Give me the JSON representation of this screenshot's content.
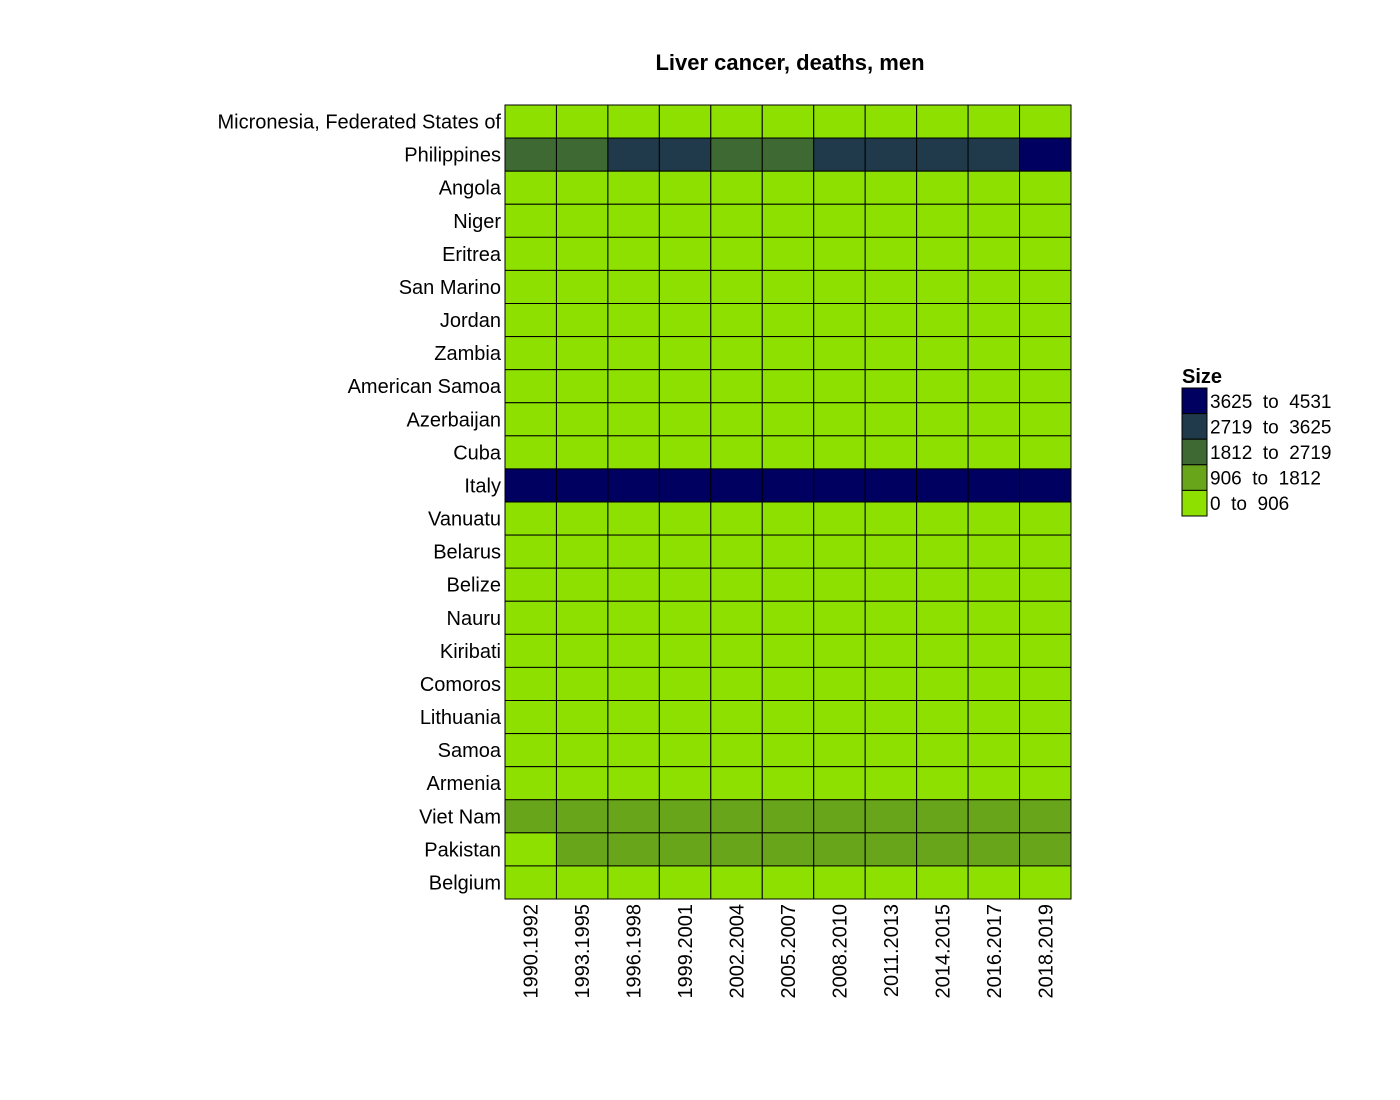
{
  "chart_data": {
    "type": "heatmap",
    "title": "Liver cancer, deaths, men",
    "rows": [
      "Micronesia, Federated States of",
      "Philippines",
      "Angola",
      "Niger",
      "Eritrea",
      "San Marino",
      "Jordan",
      "Zambia",
      "American Samoa",
      "Azerbaijan",
      "Cuba",
      "Italy",
      "Vanuatu",
      "Belarus",
      "Belize",
      "Nauru",
      "Kiribati",
      "Comoros",
      "Lithuania",
      "Samoa",
      "Armenia",
      "Viet Nam",
      "Pakistan",
      "Belgium"
    ],
    "columns": [
      "1990.1992",
      "1993.1995",
      "1996.1998",
      "1999.2001",
      "2002.2004",
      "2005.2007",
      "2008.2010",
      "2011.2013",
      "2014.2015",
      "2016.2017",
      "2018.2019"
    ],
    "bins": [
      {
        "label": "3625  to  4531",
        "min": 3625,
        "max": 4531,
        "color": "#000060"
      },
      {
        "label": "2719  to  3625",
        "min": 2719,
        "max": 3625,
        "color": "#203a4c"
      },
      {
        "label": "1812  to  2719",
        "min": 1812,
        "max": 2719,
        "color": "#3f6932"
      },
      {
        "label": "906  to  1812",
        "min": 906,
        "max": 1812,
        "color": "#68a51a"
      },
      {
        "label": "0  to  906",
        "min": 0,
        "max": 906,
        "color": "#8ee000"
      }
    ],
    "bin_index": [
      [
        4,
        4,
        4,
        4,
        4,
        4,
        4,
        4,
        4,
        4,
        4
      ],
      [
        2,
        2,
        1,
        1,
        2,
        2,
        1,
        1,
        1,
        1,
        0
      ],
      [
        4,
        4,
        4,
        4,
        4,
        4,
        4,
        4,
        4,
        4,
        4
      ],
      [
        4,
        4,
        4,
        4,
        4,
        4,
        4,
        4,
        4,
        4,
        4
      ],
      [
        4,
        4,
        4,
        4,
        4,
        4,
        4,
        4,
        4,
        4,
        4
      ],
      [
        4,
        4,
        4,
        4,
        4,
        4,
        4,
        4,
        4,
        4,
        4
      ],
      [
        4,
        4,
        4,
        4,
        4,
        4,
        4,
        4,
        4,
        4,
        4
      ],
      [
        4,
        4,
        4,
        4,
        4,
        4,
        4,
        4,
        4,
        4,
        4
      ],
      [
        4,
        4,
        4,
        4,
        4,
        4,
        4,
        4,
        4,
        4,
        4
      ],
      [
        4,
        4,
        4,
        4,
        4,
        4,
        4,
        4,
        4,
        4,
        4
      ],
      [
        4,
        4,
        4,
        4,
        4,
        4,
        4,
        4,
        4,
        4,
        4
      ],
      [
        0,
        0,
        0,
        0,
        0,
        0,
        0,
        0,
        0,
        0,
        0
      ],
      [
        4,
        4,
        4,
        4,
        4,
        4,
        4,
        4,
        4,
        4,
        4
      ],
      [
        4,
        4,
        4,
        4,
        4,
        4,
        4,
        4,
        4,
        4,
        4
      ],
      [
        4,
        4,
        4,
        4,
        4,
        4,
        4,
        4,
        4,
        4,
        4
      ],
      [
        4,
        4,
        4,
        4,
        4,
        4,
        4,
        4,
        4,
        4,
        4
      ],
      [
        4,
        4,
        4,
        4,
        4,
        4,
        4,
        4,
        4,
        4,
        4
      ],
      [
        4,
        4,
        4,
        4,
        4,
        4,
        4,
        4,
        4,
        4,
        4
      ],
      [
        4,
        4,
        4,
        4,
        4,
        4,
        4,
        4,
        4,
        4,
        4
      ],
      [
        4,
        4,
        4,
        4,
        4,
        4,
        4,
        4,
        4,
        4,
        4
      ],
      [
        4,
        4,
        4,
        4,
        4,
        4,
        4,
        4,
        4,
        4,
        4
      ],
      [
        3,
        3,
        3,
        3,
        3,
        3,
        3,
        3,
        3,
        3,
        3
      ],
      [
        4,
        3,
        3,
        3,
        3,
        3,
        3,
        3,
        3,
        3,
        3
      ],
      [
        4,
        4,
        4,
        4,
        4,
        4,
        4,
        4,
        4,
        4,
        4
      ]
    ],
    "legend": {
      "title": "Size",
      "position": "right"
    },
    "grid": false
  }
}
